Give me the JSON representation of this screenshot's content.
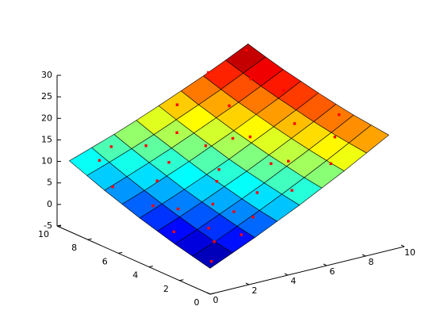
{
  "chart_data": {
    "type": "surface",
    "colormap": "jet",
    "edgecolor": "#000000",
    "x": [
      0,
      1.15,
      2.3,
      3.45,
      4.6,
      5.75,
      6.9,
      8.05,
      9.2
    ],
    "y": [
      0,
      1.15,
      2.3,
      3.45,
      4.6,
      5.75,
      6.9,
      8.05,
      9.2
    ],
    "z": [
      [
        1,
        3.3,
        5.6,
        8.1,
        10.6,
        13.3,
        16,
        18.9,
        21.8
      ],
      [
        2,
        4.1,
        6.4,
        8.8,
        11.3,
        13.9,
        16.6,
        19.4,
        22.3
      ],
      [
        3,
        5.1,
        7.4,
        9.7,
        12.1,
        14.7,
        17.3,
        20,
        22.8
      ],
      [
        4.2,
        6.2,
        8.4,
        10.7,
        13,
        15.5,
        18.1,
        20.7,
        23.5
      ],
      [
        5.4,
        7.4,
        9.5,
        11.7,
        14,
        16.5,
        19,
        21.6,
        24.3
      ],
      [
        6.8,
        8.7,
        10.8,
        12.9,
        15.2,
        17.5,
        20,
        22.5,
        25.2
      ],
      [
        8.2,
        10.1,
        12.1,
        14.2,
        16.4,
        18.7,
        21,
        23.5,
        26.1
      ],
      [
        9.8,
        11.6,
        13.5,
        15.5,
        17.7,
        19.9,
        22.2,
        24.7,
        27.2
      ],
      [
        11.4,
        13.2,
        15,
        17,
        19.1,
        21.3,
        23.5,
        25.9,
        28.4
      ]
    ],
    "scatter": {
      "color": "#ff0000",
      "x": [
        1,
        2,
        0.5,
        1.5,
        3,
        2.5,
        4,
        1,
        0.5,
        2,
        3.5,
        5,
        5.5,
        6,
        4.5,
        3,
        1,
        7,
        8,
        7.5,
        8.5,
        6.5,
        5,
        7,
        8.8,
        9,
        2,
        4,
        6,
        3,
        1.5,
        0.3,
        8,
        5.5,
        2.8,
        4.2
      ],
      "y": [
        1,
        0.5,
        3,
        2,
        1,
        3,
        2,
        5,
        7,
        6,
        4,
        1,
        3,
        5,
        6,
        8,
        8.5,
        1,
        2,
        4,
        6,
        7,
        8.5,
        9,
        8.8,
        3,
        9,
        4.5,
        2.5,
        6.5,
        4,
        0.3,
        7.5,
        5.5,
        2,
        7.5
      ],
      "z": [
        4.5,
        5.8,
        4.2,
        5.5,
        8,
        8.4,
        11,
        6.5,
        8.3,
        9.6,
        11,
        12,
        14.5,
        17,
        15,
        13.5,
        11.5,
        16,
        19.5,
        20,
        23.5,
        20.5,
        20,
        24.5,
        28,
        22,
        12.8,
        12.4,
        15.3,
        12,
        6.8,
        1.8,
        24.3,
        16.4,
        7.9,
        16
      ]
    },
    "xlim": [
      0,
      10
    ],
    "ylim": [
      0,
      10
    ],
    "zlim": [
      -5,
      30
    ],
    "xticks": [
      0,
      2,
      4,
      6,
      8,
      10
    ],
    "yticks": [
      0,
      2,
      4,
      6,
      8,
      10
    ],
    "zticks": [
      -5,
      0,
      5,
      10,
      15,
      20,
      25,
      30
    ]
  }
}
